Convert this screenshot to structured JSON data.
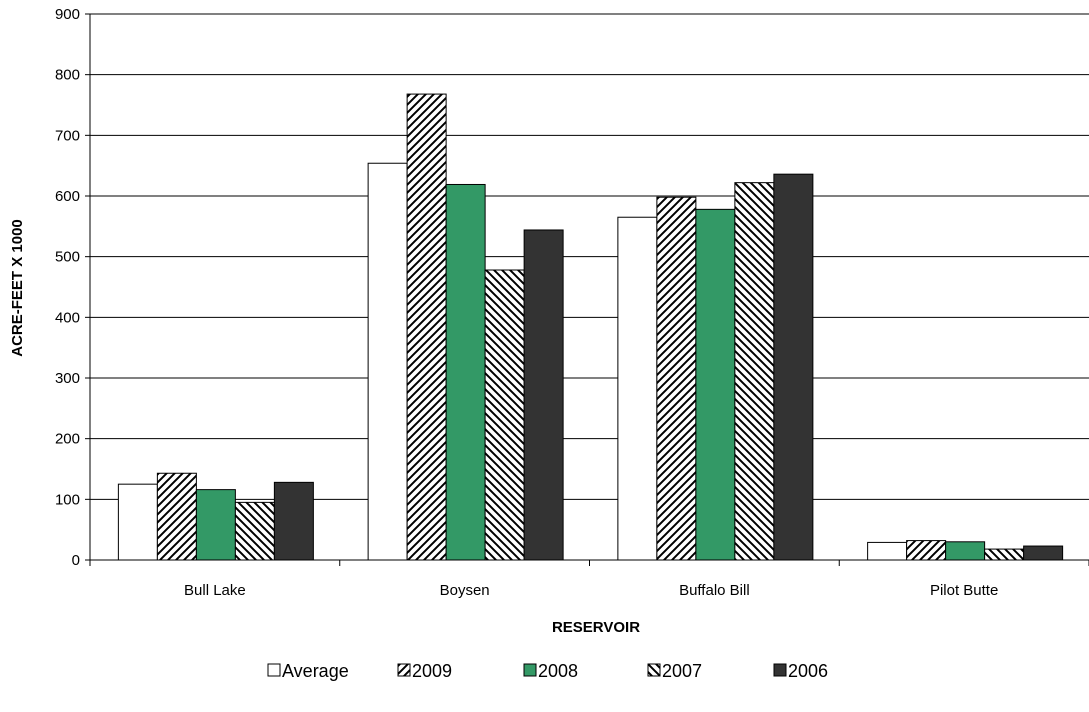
{
  "chart_data": {
    "type": "bar",
    "title": "",
    "xlabel": "RESERVOIR",
    "ylabel": "ACRE-FEET X 1000",
    "ylim": [
      0,
      900
    ],
    "ytick_step": 100,
    "yticks": [
      "0",
      "100",
      "200",
      "300",
      "400",
      "500",
      "600",
      "700",
      "800",
      "900"
    ],
    "grid": true,
    "legend_position": "bottom",
    "categories": [
      "Bull Lake",
      "Boysen",
      "Buffalo Bill",
      "Pilot Butte"
    ],
    "series": [
      {
        "name": "Average",
        "values": [
          125,
          654,
          565,
          29
        ],
        "fill": "#ffffff",
        "pattern": "solid"
      },
      {
        "name": "2009",
        "values": [
          143,
          768,
          598,
          32
        ],
        "fill": "#ffffff",
        "pattern": "forward-hatch"
      },
      {
        "name": "2008",
        "values": [
          116,
          619,
          578,
          30
        ],
        "fill": "#339966",
        "pattern": "solid"
      },
      {
        "name": "2007",
        "values": [
          95,
          478,
          622,
          18
        ],
        "fill": "#ffffff",
        "pattern": "back-hatch"
      },
      {
        "name": "2006",
        "values": [
          128,
          544,
          636,
          23
        ],
        "fill": "#333333",
        "pattern": "solid"
      }
    ]
  }
}
